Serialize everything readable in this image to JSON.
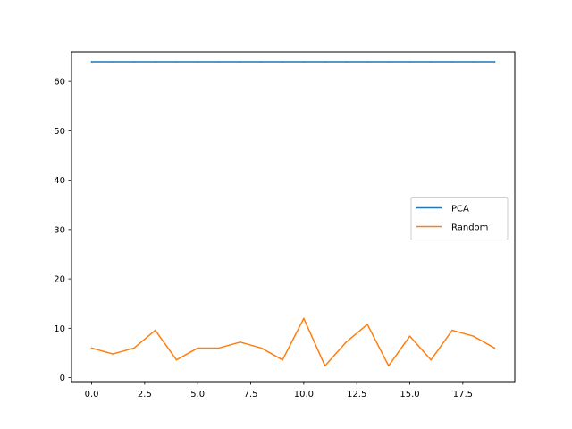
{
  "chart_data": {
    "type": "line",
    "title": "",
    "xlabel": "",
    "ylabel": "",
    "xlim": [
      -0.95,
      19.95
    ],
    "ylim": [
      -0.8,
      66.0
    ],
    "xticks": [
      0.0,
      2.5,
      5.0,
      7.5,
      10.0,
      12.5,
      15.0,
      17.5
    ],
    "xtick_labels": [
      "0.0",
      "2.5",
      "5.0",
      "7.5",
      "10.0",
      "12.5",
      "15.0",
      "17.5"
    ],
    "yticks": [
      0,
      10,
      20,
      30,
      40,
      50,
      60
    ],
    "ytick_labels": [
      "0",
      "10",
      "20",
      "30",
      "40",
      "50",
      "60"
    ],
    "grid": false,
    "legend_position": "center-right",
    "x": [
      0,
      1,
      2,
      3,
      4,
      5,
      6,
      7,
      8,
      9,
      10,
      11,
      12,
      13,
      14,
      15,
      16,
      17,
      18,
      19
    ],
    "series": [
      {
        "name": "PCA",
        "color": "#1f77b4",
        "values": [
          64,
          64,
          64,
          64,
          64,
          64,
          64,
          64,
          64,
          64,
          64,
          64,
          64,
          64,
          64,
          64,
          64,
          64,
          64,
          64
        ]
      },
      {
        "name": "Random",
        "color": "#ff7f0e",
        "values": [
          6.0,
          4.8,
          6.0,
          9.6,
          3.6,
          6.0,
          6.0,
          7.2,
          6.0,
          3.6,
          12.0,
          2.4,
          7.2,
          10.8,
          2.4,
          8.4,
          3.6,
          9.6,
          8.4,
          6.0
        ]
      }
    ]
  }
}
